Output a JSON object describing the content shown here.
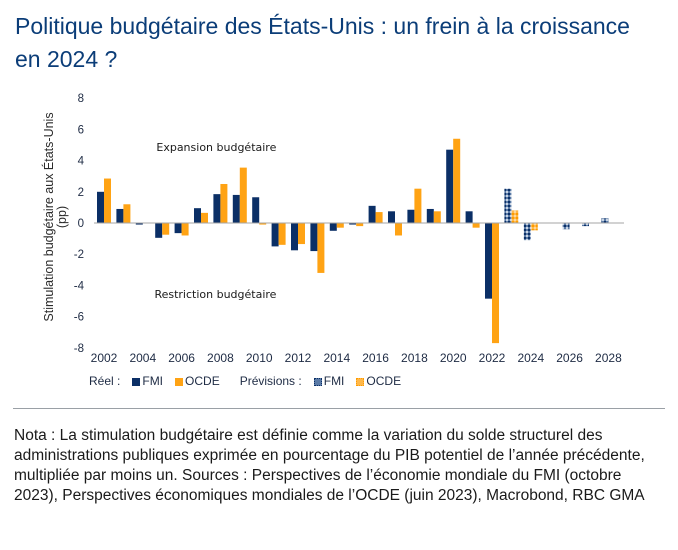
{
  "title": "Politique budgétaire des États-Unis : un frein à la croissance en 2024 ?",
  "colors": {
    "title": "#0b3d78",
    "fmi": "#0b2f66",
    "ocde": "#ffa314",
    "axis": "#a6a6a6",
    "text": "#1e2b44"
  },
  "legend": {
    "actual_label": "Réel :",
    "forecast_label": "Prévisions :",
    "fmi": "FMI",
    "ocde": "OCDE"
  },
  "note": "Nota : La stimulation budgétaire est définie comme la variation du solde structurel des administrations publiques exprimée en pourcentage du PIB potentiel de l’année précédente, multipliée par moins un. Sources : Perspectives de l’économie mondiale du FMI (octobre 2023), Perspectives économiques mondiales de l’OCDE (juin 2023), Macrobond, RBC GMA",
  "chart_data": {
    "type": "bar",
    "title": "",
    "xlabel": "",
    "ylabel": "Stimulation budgétaire aux États-Unis (pp)",
    "ylim": [
      -8,
      8
    ],
    "yticks": [
      8,
      6,
      4,
      2,
      0,
      -2,
      -4,
      -6,
      -8
    ],
    "xtick_labels": [
      "2002",
      "2004",
      "2006",
      "2008",
      "2010",
      "2012",
      "2014",
      "2016",
      "2018",
      "2020",
      "2022",
      "2024",
      "2026",
      "2028"
    ],
    "categories": [
      2002,
      2003,
      2004,
      2005,
      2006,
      2007,
      2008,
      2009,
      2010,
      2011,
      2012,
      2013,
      2014,
      2015,
      2016,
      2017,
      2018,
      2019,
      2020,
      2021,
      2022,
      2023,
      2024,
      2025,
      2026,
      2027,
      2028
    ],
    "forecast_start": 2023,
    "annotations": [
      {
        "text": "Expansion budgétaire",
        "x": 2004.7,
        "y": 4.6
      },
      {
        "text": "Restriction budgétaire",
        "x": 2004.6,
        "y": -4.8
      }
    ],
    "legend_position": "bottom-left",
    "grid": false,
    "series": [
      {
        "name": "FMI",
        "values": [
          2.0,
          0.9,
          -0.1,
          -0.95,
          -0.65,
          0.95,
          1.85,
          1.8,
          1.65,
          -1.5,
          -1.75,
          -1.8,
          -0.5,
          -0.1,
          1.1,
          0.75,
          0.85,
          0.9,
          4.7,
          0.75,
          -4.85,
          2.2,
          -1.1,
          0.0,
          -0.4,
          -0.2,
          0.3
        ]
      },
      {
        "name": "OCDE",
        "values": [
          2.85,
          1.2,
          0.0,
          -0.75,
          -0.8,
          0.65,
          2.5,
          3.55,
          -0.1,
          -1.4,
          -1.35,
          -3.2,
          -0.3,
          -0.2,
          0.7,
          -0.8,
          2.2,
          0.75,
          5.4,
          -0.3,
          -7.7,
          0.8,
          -0.47,
          null,
          null,
          null,
          null
        ]
      }
    ]
  }
}
